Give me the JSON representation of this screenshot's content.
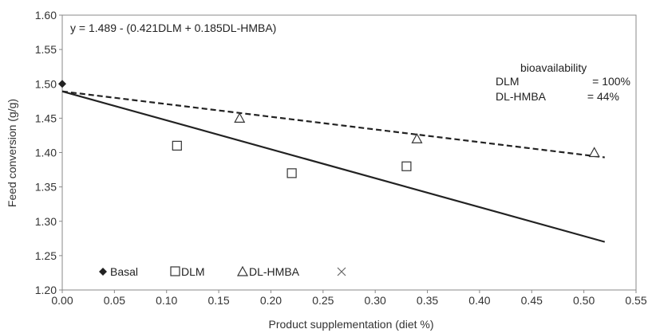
{
  "chart_data": {
    "type": "scatter",
    "title": "",
    "xlabel": "Product supplementation (diet %)",
    "ylabel": "Feed conversion  (g/g)",
    "xlim": [
      0,
      0.55
    ],
    "ylim": [
      1.2,
      1.6
    ],
    "xticks": [
      "0.00",
      "0.05",
      "0.10",
      "0.15",
      "0.20",
      "0.25",
      "0.30",
      "0.35",
      "0.40",
      "0.45",
      "0.50",
      "0.55"
    ],
    "yticks": [
      "1.20",
      "1.25",
      "1.30",
      "1.35",
      "1.40",
      "1.45",
      "1.50",
      "1.55",
      "1.60"
    ],
    "grid": false,
    "equation": "y = 1.489 - (0.421DLM  + 0.185DL-HMBA)",
    "bioavailability": {
      "title": "bioavailability",
      "rows": [
        {
          "name": "DLM",
          "value": "= 100%"
        },
        {
          "name": "DL-HMBA",
          "value": "= 44%"
        }
      ]
    },
    "series": [
      {
        "name": "Basal",
        "marker": "diamond-filled",
        "color": "#222222",
        "points": [
          [
            0.0,
            1.5
          ]
        ]
      },
      {
        "name": "DLM",
        "marker": "square-open",
        "color": "#333333",
        "points": [
          [
            0.11,
            1.41
          ],
          [
            0.22,
            1.37
          ],
          [
            0.33,
            1.38
          ]
        ]
      },
      {
        "name": "DL-HMBA",
        "marker": "triangle-open",
        "color": "#333333",
        "points": [
          [
            0.17,
            1.45
          ],
          [
            0.34,
            1.42
          ],
          [
            0.51,
            1.4
          ]
        ]
      }
    ],
    "fit_lines": [
      {
        "style": "solid",
        "x": [
          0.0,
          0.52
        ],
        "y": [
          1.489,
          1.27
        ]
      },
      {
        "style": "dashed",
        "x": [
          0.0,
          0.52
        ],
        "y": [
          1.489,
          1.393
        ]
      }
    ],
    "legend": {
      "placement": "bottom-left",
      "entries": [
        {
          "label": "Basal",
          "marker": "diamond-filled"
        },
        {
          "label": "DLM",
          "marker": "square-open"
        },
        {
          "label": "DL-HMBA",
          "marker": "triangle-open"
        },
        {
          "label": "",
          "marker": "x"
        }
      ]
    }
  }
}
